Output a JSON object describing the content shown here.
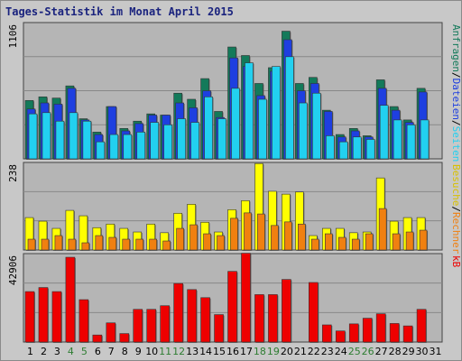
{
  "title": "Tages-Statistik im Monat April 2015",
  "colors": {
    "background": "#c8c8c8",
    "plot_bg": "#b5b5b5",
    "hits": "#137a5a",
    "files": "#1e3fe0",
    "pages": "#22d0f0",
    "visits": "#ffff00",
    "sites": "#f08010",
    "kb": "#ee0000",
    "weekend_day": "#2e7d32",
    "title": "#1a237e"
  },
  "chart_data": [
    {
      "type": "bar",
      "panel": "top",
      "ymax_label": "1106",
      "right_label_parts": [
        {
          "text": "Anfragen",
          "color": "#137a5a"
        },
        {
          "text": "/",
          "color": "#000000"
        },
        {
          "text": "Dateien",
          "color": "#1e3fe0"
        },
        {
          "text": "/",
          "color": "#000000"
        },
        {
          "text": "Seiten",
          "color": "#22d0f0"
        }
      ],
      "ylim": [
        0,
        1106
      ],
      "categories": [
        "1",
        "2",
        "3",
        "4",
        "5",
        "6",
        "7",
        "8",
        "9",
        "10",
        "11",
        "12",
        "13",
        "14",
        "15",
        "16",
        "17",
        "18",
        "19",
        "20",
        "21",
        "22",
        "23",
        "24",
        "25",
        "26",
        "27",
        "28",
        "29",
        "30",
        "31"
      ],
      "series": [
        {
          "name": "Anfragen",
          "values": [
            480,
            510,
            500,
            600,
            330,
            220,
            430,
            250,
            310,
            370,
            360,
            540,
            490,
            660,
            390,
            920,
            850,
            620,
            750,
            1050,
            620,
            670,
            400,
            200,
            250,
            190,
            650,
            430,
            320,
            580,
            0
          ]
        },
        {
          "name": "Dateien",
          "values": [
            410,
            460,
            450,
            580,
            320,
            200,
            430,
            230,
            290,
            360,
            360,
            460,
            420,
            560,
            340,
            830,
            760,
            520,
            720,
            980,
            560,
            620,
            390,
            180,
            230,
            180,
            580,
            400,
            300,
            550,
            0
          ]
        },
        {
          "name": "Seiten",
          "values": [
            370,
            380,
            310,
            380,
            310,
            140,
            200,
            200,
            220,
            300,
            280,
            330,
            300,
            510,
            330,
            580,
            790,
            490,
            760,
            840,
            460,
            540,
            190,
            140,
            180,
            160,
            440,
            320,
            280,
            320,
            0
          ]
        }
      ]
    },
    {
      "type": "bar",
      "panel": "middle",
      "ymax_label": "238",
      "right_label_parts": [
        {
          "text": "Besuche",
          "color": "#d8c000"
        },
        {
          "text": "/",
          "color": "#000000"
        },
        {
          "text": "Rechner",
          "color": "#f08010"
        }
      ],
      "ylim": [
        0,
        238
      ],
      "categories": [
        "1",
        "2",
        "3",
        "4",
        "5",
        "6",
        "7",
        "8",
        "9",
        "10",
        "11",
        "12",
        "13",
        "14",
        "15",
        "16",
        "17",
        "18",
        "19",
        "20",
        "21",
        "22",
        "23",
        "24",
        "25",
        "26",
        "27",
        "28",
        "29",
        "30",
        "31"
      ],
      "series": [
        {
          "name": "Besuche",
          "values": [
            90,
            80,
            60,
            110,
            95,
            62,
            72,
            60,
            50,
            72,
            48,
            102,
            127,
            77,
            50,
            112,
            137,
            240,
            163,
            155,
            161,
            40,
            60,
            60,
            48,
            50,
            200,
            80,
            90,
            90,
            0
          ]
        },
        {
          "name": "Rechner",
          "values": [
            30,
            30,
            40,
            30,
            20,
            40,
            35,
            30,
            30,
            30,
            25,
            60,
            70,
            45,
            40,
            88,
            103,
            100,
            68,
            78,
            72,
            30,
            45,
            35,
            30,
            45,
            115,
            45,
            50,
            55,
            0
          ]
        }
      ]
    },
    {
      "type": "bar",
      "panel": "bottom",
      "ymax_label": "42906",
      "right_label_parts": [
        {
          "text": "kB",
          "color": "#ee0000"
        }
      ],
      "ylim": [
        0,
        42906
      ],
      "categories": [
        "1",
        "2",
        "3",
        "4",
        "5",
        "6",
        "7",
        "8",
        "9",
        "10",
        "11",
        "12",
        "13",
        "14",
        "15",
        "16",
        "17",
        "18",
        "19",
        "20",
        "21",
        "22",
        "23",
        "24",
        "25",
        "26",
        "27",
        "28",
        "29",
        "30",
        "31"
      ],
      "series": [
        {
          "name": "kB",
          "values": [
            25000,
            27000,
            25000,
            42000,
            21000,
            3500,
            9500,
            4200,
            16200,
            16200,
            18000,
            29000,
            26000,
            22000,
            13600,
            35000,
            44000,
            23500,
            23500,
            31000,
            0,
            29500,
            8500,
            5500,
            9000,
            11800,
            14000,
            9200,
            8000,
            16200,
            0
          ]
        }
      ]
    }
  ],
  "x_axis": {
    "days": [
      "1",
      "2",
      "3",
      "4",
      "5",
      "6",
      "7",
      "8",
      "9",
      "10",
      "11",
      "12",
      "13",
      "14",
      "15",
      "16",
      "17",
      "18",
      "19",
      "20",
      "21",
      "22",
      "23",
      "24",
      "25",
      "26",
      "27",
      "28",
      "29",
      "30",
      "31"
    ],
    "weekend": [
      "4",
      "5",
      "11",
      "12",
      "18",
      "19",
      "25",
      "26"
    ]
  }
}
